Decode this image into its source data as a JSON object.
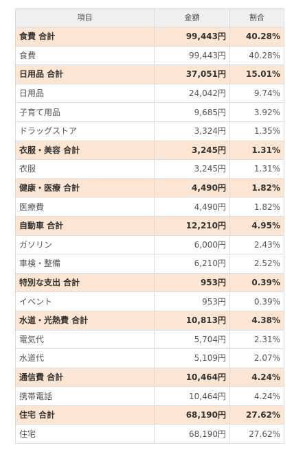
{
  "table": {
    "headers": {
      "item": "項目",
      "amount": "金額",
      "ratio": "割合"
    },
    "rows": [
      {
        "type": "total",
        "label": "食費 合計",
        "amount": "99,443円",
        "ratio": "40.28%"
      },
      {
        "type": "item",
        "label": "食費",
        "amount": "99,443円",
        "ratio": "40.28%"
      },
      {
        "type": "total",
        "label": "日用品 合計",
        "amount": "37,051円",
        "ratio": "15.01%"
      },
      {
        "type": "item",
        "label": "日用品",
        "amount": "24,042円",
        "ratio": "9.74%"
      },
      {
        "type": "item",
        "label": "子育て用品",
        "amount": "9,685円",
        "ratio": "3.92%"
      },
      {
        "type": "item",
        "label": "ドラッグストア",
        "amount": "3,324円",
        "ratio": "1.35%"
      },
      {
        "type": "total",
        "label": "衣服・美容 合計",
        "amount": "3,245円",
        "ratio": "1.31%"
      },
      {
        "type": "item",
        "label": "衣服",
        "amount": "3,245円",
        "ratio": "1.31%"
      },
      {
        "type": "total",
        "label": "健康・医療 合計",
        "amount": "4,490円",
        "ratio": "1.82%"
      },
      {
        "type": "item",
        "label": "医療費",
        "amount": "4,490円",
        "ratio": "1.82%"
      },
      {
        "type": "total",
        "label": "自動車 合計",
        "amount": "12,210円",
        "ratio": "4.95%"
      },
      {
        "type": "item",
        "label": "ガソリン",
        "amount": "6,000円",
        "ratio": "2.43%"
      },
      {
        "type": "item",
        "label": "車検・整備",
        "amount": "6,210円",
        "ratio": "2.52%"
      },
      {
        "type": "total",
        "label": "特別な支出 合計",
        "amount": "953円",
        "ratio": "0.39%"
      },
      {
        "type": "item",
        "label": "イベント",
        "amount": "953円",
        "ratio": "0.39%"
      },
      {
        "type": "total",
        "label": "水道・光熱費 合計",
        "amount": "10,813円",
        "ratio": "4.38%"
      },
      {
        "type": "item",
        "label": "電気代",
        "amount": "5,704円",
        "ratio": "2.31%"
      },
      {
        "type": "item",
        "label": "水道代",
        "amount": "5,109円",
        "ratio": "2.07%"
      },
      {
        "type": "total",
        "label": "通信費 合計",
        "amount": "10,464円",
        "ratio": "4.24%"
      },
      {
        "type": "item",
        "label": "携帯電話",
        "amount": "10,464円",
        "ratio": "4.24%"
      },
      {
        "type": "total",
        "label": "住宅 合計",
        "amount": "68,190円",
        "ratio": "27.62%"
      },
      {
        "type": "item",
        "label": "住宅",
        "amount": "68,190円",
        "ratio": "27.62%"
      }
    ]
  }
}
